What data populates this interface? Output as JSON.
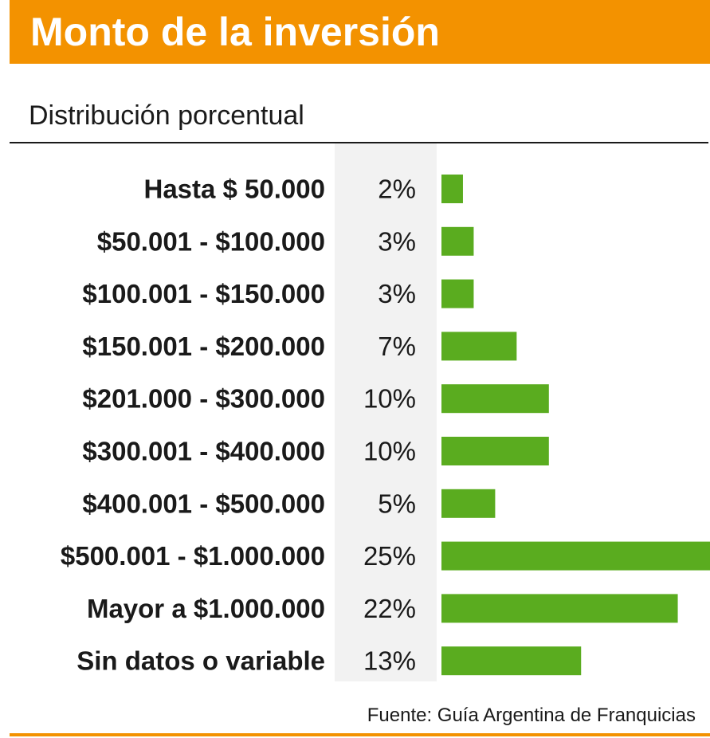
{
  "header": {
    "title": "Monto de la inversión"
  },
  "chart_data": {
    "type": "bar",
    "orientation": "horizontal",
    "title": "Monto de la inversión",
    "subtitle": "Distribución porcentual",
    "categories": [
      "Hasta $ 50.000",
      "$50.001 - $100.000",
      "$100.001 - $150.000",
      "$150.001 - $200.000",
      "$201.000 - $300.000",
      "$300.001 - $400.000",
      "$400.001 - $500.000",
      "$500.001 - $1.000.000",
      "Mayor a $1.000.000",
      "Sin datos o variable"
    ],
    "values": [
      2,
      3,
      3,
      7,
      10,
      10,
      5,
      25,
      22,
      13
    ],
    "value_labels": [
      "2%",
      "3%",
      "3%",
      "7%",
      "10%",
      "10%",
      "5%",
      "25%",
      "22%",
      "13%"
    ],
    "unit": "%",
    "xlim": [
      0,
      25
    ],
    "bar_color": "#5aac1f",
    "grid": false,
    "source": "Fuente: Guía Argentina de Franquicias"
  },
  "colors": {
    "accent": "#f39200",
    "bar": "#5aac1f",
    "column_bg": "#f2f2f2"
  }
}
